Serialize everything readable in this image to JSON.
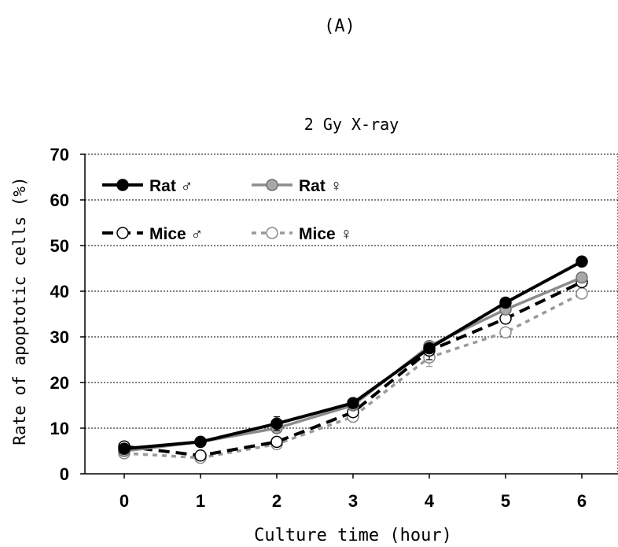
{
  "panel_label": "(A)",
  "chart_data": {
    "type": "line",
    "title": "2 Gy X-ray",
    "xlabel": "Culture time (hour)",
    "ylabel": "Rate of apoptotic cells (%)",
    "x": [
      0,
      1,
      2,
      3,
      4,
      5,
      6
    ],
    "xticks": [
      "0",
      "1",
      "2",
      "3",
      "4",
      "5",
      "6"
    ],
    "yticks": [
      "0",
      "10",
      "20",
      "30",
      "40",
      "50",
      "60",
      "70"
    ],
    "ylim": [
      0,
      70
    ],
    "grid": true,
    "legend_position": "top-left",
    "series": [
      {
        "name": "Rat ♂",
        "values": [
          5.5,
          7.0,
          11.0,
          15.5,
          27.5,
          37.5,
          46.5
        ],
        "color": "#000000",
        "line": "solid",
        "marker": "filled-circle",
        "errors": [
          0.5,
          0.6,
          1.5,
          0.7,
          1.0,
          0.8,
          0.7
        ]
      },
      {
        "name": "Rat ♀",
        "values": [
          5.0,
          7.0,
          10.0,
          15.0,
          28.0,
          36.0,
          43.0
        ],
        "color": "#8c8c8c",
        "line": "solid",
        "marker": "grey-circle",
        "errors": [
          0.4,
          0.5,
          0.8,
          0.6,
          0.8,
          0.8,
          0.7
        ]
      },
      {
        "name": "Mice ♂",
        "values": [
          6.0,
          4.0,
          7.0,
          13.5,
          27.0,
          34.0,
          42.0
        ],
        "color": "#000000",
        "line": "dashed",
        "marker": "open-circle",
        "errors": [
          0.4,
          0.5,
          0.6,
          0.7,
          2.0,
          0.8,
          0.8
        ]
      },
      {
        "name": "Mice ♀",
        "values": [
          4.5,
          3.5,
          6.5,
          12.5,
          25.5,
          31.0,
          39.5
        ],
        "color": "#9a9a9a",
        "line": "dashed",
        "marker": "open-circle",
        "errors": [
          0.4,
          0.5,
          0.6,
          0.6,
          2.0,
          0.8,
          0.8
        ]
      }
    ]
  }
}
